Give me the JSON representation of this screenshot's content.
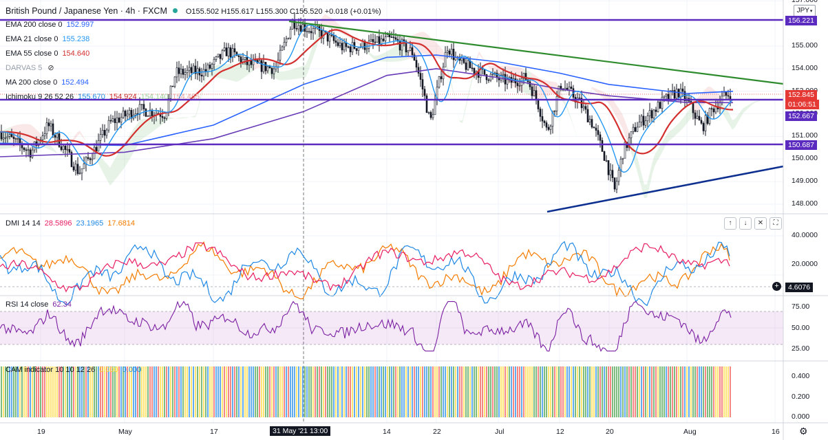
{
  "header": {
    "symbol": "British Pound / Japanese Yen · 4h · FXCM",
    "ohlc": "O155.502 H155.617 L155.300 C155.520 +0.018 (+0.01%)",
    "currency": "JPY"
  },
  "legend": {
    "ema200": {
      "label": "EMA 200 close 0",
      "value": "152.997",
      "color": "#2962ff"
    },
    "ema21": {
      "label": "EMA 21 close 0",
      "value": "155.238",
      "color": "#2196f3"
    },
    "ema55": {
      "label": "EMA 55 close 0",
      "value": "154.640",
      "color": "#d32f2f"
    },
    "darvas": {
      "label": "DARVAS 5"
    },
    "ma200": {
      "label": "MA 200 close 0",
      "value": "152.494",
      "color": "#673ab7"
    },
    "ichimoku": {
      "label": "Ichimoku 9 26 52 26",
      "v1": "155.670",
      "v2": "154.924",
      "v3": "154.140",
      "v4": "154.455"
    },
    "dmi": {
      "label": "DMI 14 14",
      "v1": "28.5896",
      "v2": "23.1965",
      "v3": "17.6814"
    },
    "rsi": {
      "label": "RSI 14 close",
      "value": "62.34"
    },
    "cam": {
      "label": "CAM indicator 10 10 12 26",
      "v1": "0.000",
      "v2": "0.000"
    }
  },
  "price_axis": {
    "ticks": [
      "157.000",
      "155.000",
      "154.000",
      "153.000",
      "152.000",
      "151.000",
      "150.000",
      "149.000",
      "148.000"
    ],
    "tags": {
      "resistance": "156.221",
      "last": "152.845",
      "countdown": "01:06:51",
      "ma": "152.667",
      "support": "150.687"
    }
  },
  "dmi_axis": {
    "ticks": [
      "40.0000",
      "20.0000"
    ],
    "tag": "4.6076"
  },
  "rsi_axis": {
    "ticks": [
      "75.00",
      "50.00",
      "25.00"
    ]
  },
  "cam_axis": {
    "ticks": [
      "0.400",
      "0.200",
      "0.000"
    ]
  },
  "time_axis": {
    "labels": [
      "19",
      "May",
      "17",
      "14",
      "22",
      "Jul",
      "12",
      "20",
      "Aug",
      "16"
    ],
    "crosshair": "31 May '21  13:00"
  },
  "colors": {
    "up": "#26a69a",
    "candle": "#131722",
    "purple": "#5b2bbf",
    "green": "#2e8b2e",
    "navy": "#0d2f8f",
    "dmi_plus": "#1e88e5",
    "dmi_minus": "#f57c00",
    "adx": "#e91e63",
    "rsi": "#7b1fa2"
  },
  "chart_data": [
    {
      "type": "line",
      "title": "British Pound / Japanese Yen · 4h · FXCM",
      "ylim": [
        147.6,
        157.2
      ],
      "x_dates": [
        "Apr 19",
        "May",
        "May 17",
        "May 31",
        "Jun 14",
        "Jun 22",
        "Jul",
        "Jul 12",
        "Jul 20",
        "Aug",
        "Aug 16"
      ],
      "series": [
        {
          "name": "EMA 21 close 0",
          "values": [
            150.9,
            150.2,
            153.6,
            155.5,
            155.0,
            154.2,
            153.6,
            153.0,
            150.9,
            152.3,
            152.85
          ]
        },
        {
          "name": "EMA 55 close 0",
          "values": [
            150.8,
            150.4,
            152.3,
            155.0,
            155.1,
            154.4,
            153.7,
            152.5,
            151.2,
            152.0,
            152.9
          ]
        },
        {
          "name": "EMA 200 close 0",
          "values": [
            150.7,
            150.6,
            151.5,
            153.3,
            154.5,
            154.6,
            154.3,
            153.8,
            153.3,
            152.9,
            152.997
          ]
        },
        {
          "name": "MA 200 close 0",
          "values": [
            150.1,
            150.3,
            150.9,
            152.1,
            153.7,
            154.0,
            153.6,
            153.1,
            152.8,
            152.5,
            152.494
          ]
        }
      ],
      "levels": [
        156.221,
        152.667,
        150.687
      ],
      "trendlines": [
        {
          "from": [
            157.0,
            "May 31"
          ],
          "to": [
            153.3,
            "Aug 16"
          ]
        },
        {
          "from": [
            147.7,
            "Jul 12"
          ],
          "to": [
            149.65,
            "Aug 16"
          ]
        }
      ]
    },
    {
      "type": "line",
      "title": "DMI 14 14",
      "ylim": [
        0,
        48
      ],
      "series": [
        {
          "name": "+DI",
          "values": [
            28.5896
          ]
        },
        {
          "name": "-DI",
          "values": [
            23.1965
          ]
        },
        {
          "name": "ADX",
          "values": [
            17.6814
          ]
        }
      ]
    },
    {
      "type": "line",
      "title": "RSI 14 close",
      "ylim": [
        10,
        85
      ],
      "bands": [
        30,
        70
      ],
      "series": [
        {
          "name": "RSI",
          "values": [
            62.34
          ]
        }
      ]
    },
    {
      "type": "bar",
      "title": "CAM indicator 10 10 12 26",
      "ylim": [
        0,
        0.5
      ]
    }
  ]
}
